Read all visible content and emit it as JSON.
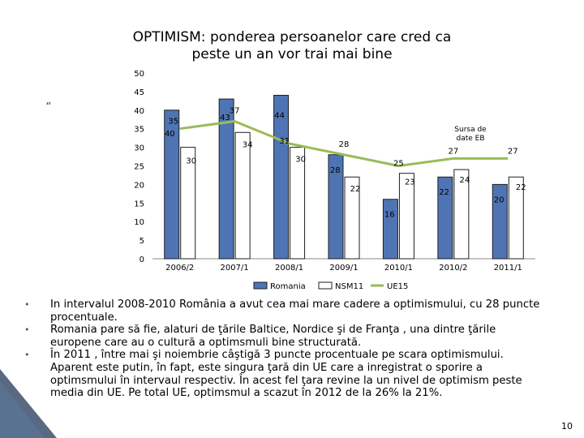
{
  "title_line1": "OPTIMISM: ponderea persoanelor care cred ca",
  "title_line2": "peste un an vor trai mai bine",
  "quote_glyph": "“",
  "page_number": "10",
  "bullets": [
    {
      "dot": "•",
      "line1": "In intervalul 2008-2010 România a avut cea mai mare cadere a optimismului, cu 28 puncte",
      "line2": "procentuale."
    },
    {
      "dot": "•",
      "line1": "Romania pare să fie, alaturi de ţările Baltice, Nordice şi de Franţa , una dintre ţările",
      "line2": "europene care au o cultură a optimsmuli bine structurată."
    },
    {
      "dot": "•",
      "line1": "În 2011 , între mai şi noiembrie câştigă 3 puncte procentuale pe scara optimismului.",
      "line2": "Aparent este putin, în fapt, este singura ţară din UE care a inregistrat o sporire a",
      "line3": "optimsmului în intervaul respectiv. În acest fel ţara revine la un nivel de optimism peste",
      "line4": "media din UE. Pe total UE, optimsmul a scazut în 2012 de la 26% la 21%."
    }
  ],
  "chart_data": {
    "type": "bar",
    "categories": [
      "2006/2",
      "2007/1",
      "2008/1",
      "2009/1",
      "2010/1",
      "2010/2",
      "2011/1"
    ],
    "ylim": [
      0,
      50
    ],
    "yticks": [
      0,
      5,
      10,
      15,
      20,
      25,
      30,
      35,
      40,
      45,
      50
    ],
    "series": [
      {
        "name": "Romania",
        "values": [
          40,
          43,
          44,
          28,
          16,
          22,
          20
        ],
        "color": "#4F74B4",
        "kind": "bar"
      },
      {
        "name": "NSM11",
        "values": [
          30,
          34,
          30,
          22,
          23,
          24,
          22
        ],
        "color": "#ffffff",
        "kind": "bar"
      },
      {
        "name": "UE15",
        "values": [
          35,
          37,
          31,
          28,
          25,
          27,
          27
        ],
        "color": "#9BBB59",
        "kind": "line"
      }
    ],
    "annotation": "Sursa de date EB",
    "grid": false,
    "legend_position": "bottom"
  }
}
